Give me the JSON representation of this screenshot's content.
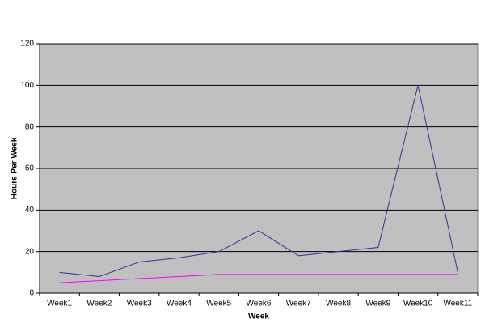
{
  "chart_data": {
    "type": "line",
    "x_label": "Week",
    "y_label": "Hours Per Week",
    "categories": [
      "Week1",
      "Week2",
      "Week3",
      "Week4",
      "Week5",
      "Week6",
      "Week7",
      "Week8",
      "Week9",
      "Week10",
      "Week11"
    ],
    "series": [
      {
        "color": "#333399",
        "values": [
          10,
          8,
          15,
          17,
          20,
          30,
          18,
          20,
          22,
          100,
          10
        ]
      },
      {
        "color": "#ff00ff",
        "values": [
          5,
          6,
          7,
          8,
          9,
          9,
          9,
          9,
          9,
          9,
          9
        ]
      }
    ],
    "ylim": [
      0,
      120
    ],
    "yticks": [
      0,
      20,
      40,
      60,
      80,
      100,
      120
    ],
    "grid": true,
    "plot_background": "#c0c0c0"
  }
}
